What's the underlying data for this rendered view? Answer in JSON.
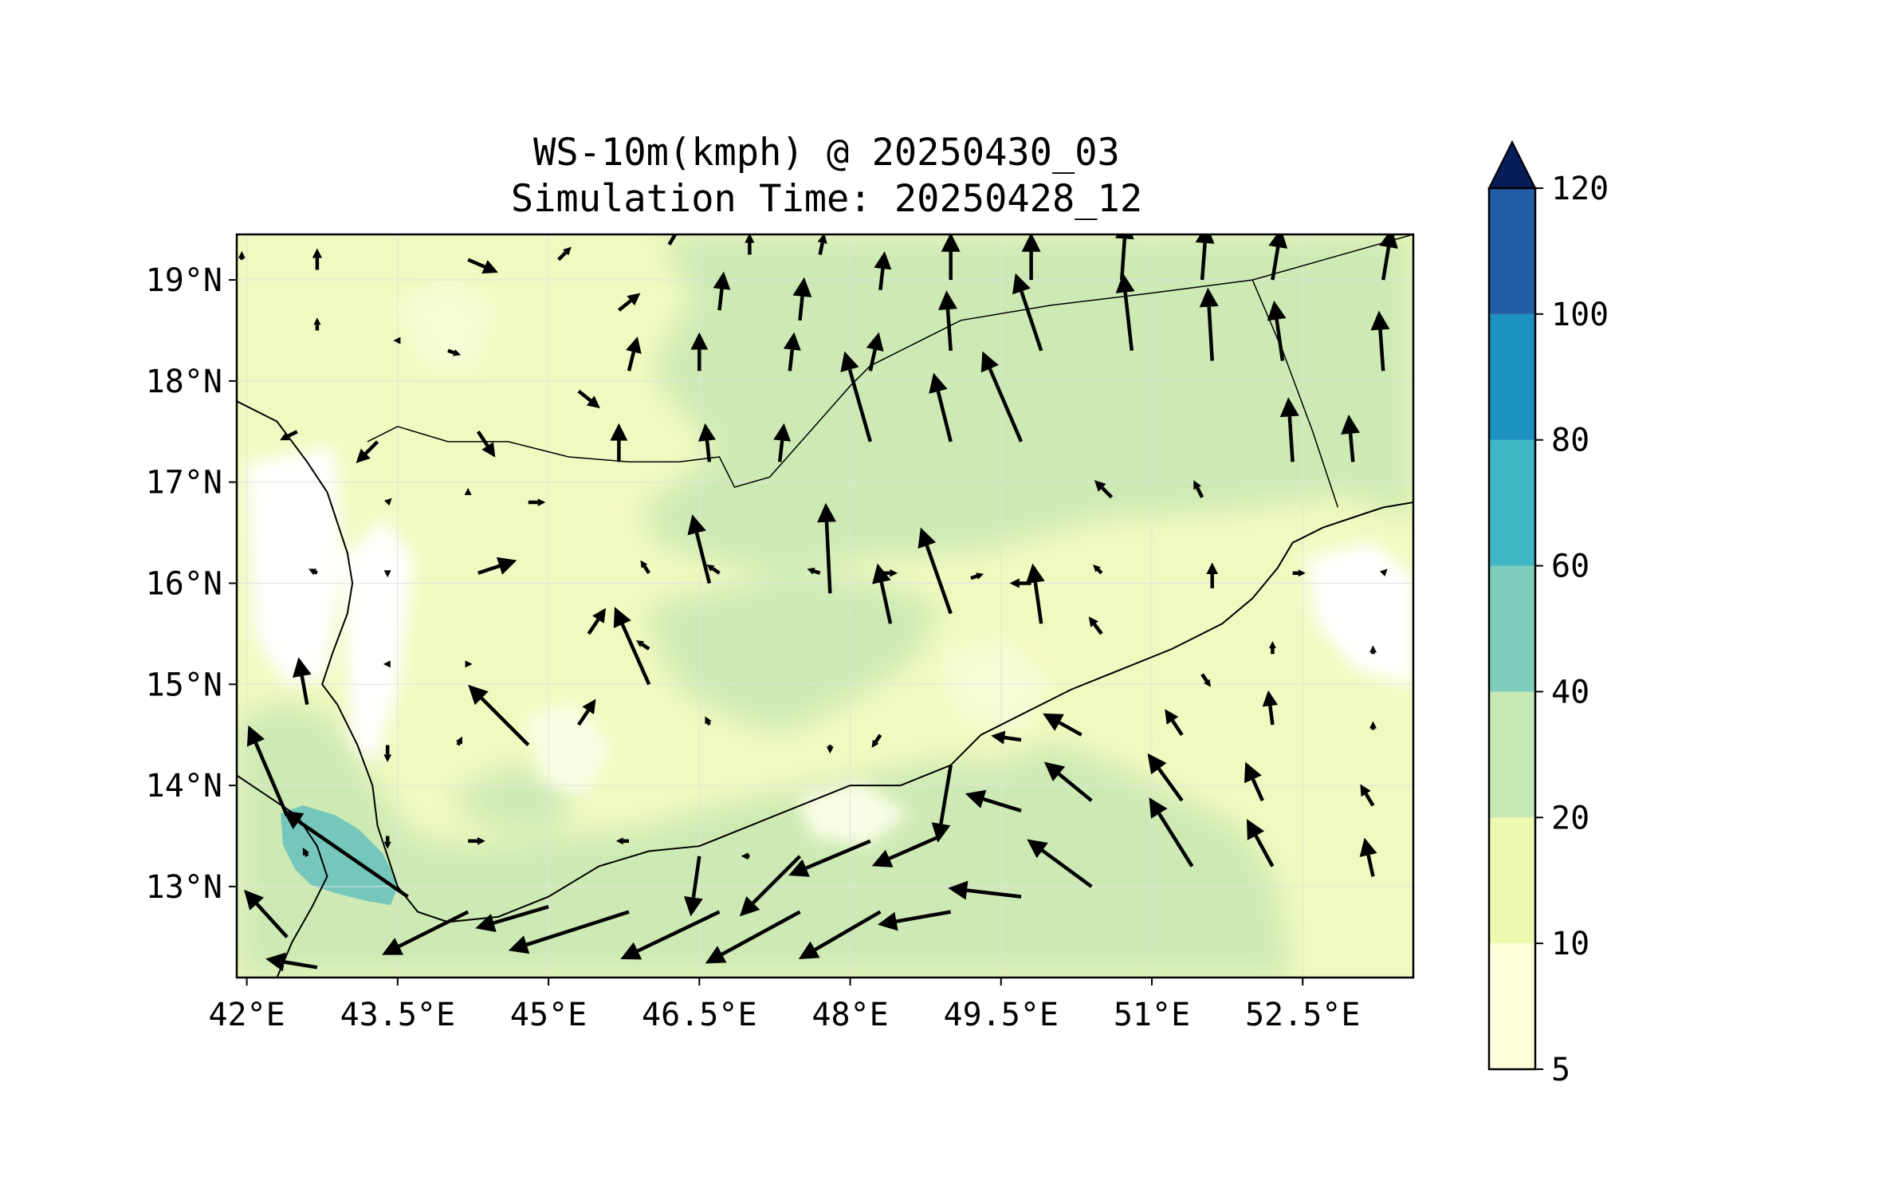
{
  "title": {
    "line1": "WS-10m(kmph) @ 20250430_03",
    "line2": "Simulation Time: 20250428_12"
  },
  "map": {
    "lon_range": [
      41.9,
      53.6
    ],
    "lat_range": [
      12.1,
      19.45
    ],
    "lon_ticks": [
      {
        "value": 42.0,
        "label": "42°E"
      },
      {
        "value": 43.5,
        "label": "43.5°E"
      },
      {
        "value": 45.0,
        "label": "45°E"
      },
      {
        "value": 46.5,
        "label": "46.5°E"
      },
      {
        "value": 48.0,
        "label": "48°E"
      },
      {
        "value": 49.5,
        "label": "49.5°E"
      },
      {
        "value": 51.0,
        "label": "51°E"
      },
      {
        "value": 52.5,
        "label": "52.5°E"
      }
    ],
    "lat_ticks": [
      {
        "value": 13,
        "label": "13°N"
      },
      {
        "value": 14,
        "label": "14°N"
      },
      {
        "value": 15,
        "label": "15°N"
      },
      {
        "value": 16,
        "label": "16°N"
      },
      {
        "value": 17,
        "label": "17°N"
      },
      {
        "value": 18,
        "label": "18°N"
      },
      {
        "value": 19,
        "label": "19°N"
      }
    ],
    "gridlines": true,
    "coastline": [
      [
        41.9,
        17.8
      ],
      [
        42.3,
        17.6
      ],
      [
        42.6,
        17.2
      ],
      [
        42.8,
        16.9
      ],
      [
        42.9,
        16.6
      ],
      [
        43.0,
        16.3
      ],
      [
        43.05,
        16.0
      ],
      [
        43.0,
        15.7
      ],
      [
        42.85,
        15.3
      ],
      [
        42.75,
        15.0
      ],
      [
        42.9,
        14.8
      ],
      [
        43.1,
        14.4
      ],
      [
        43.25,
        14.0
      ],
      [
        43.3,
        13.6
      ],
      [
        43.4,
        13.3
      ],
      [
        43.5,
        13.0
      ],
      [
        43.7,
        12.75
      ],
      [
        44.0,
        12.65
      ],
      [
        44.5,
        12.7
      ],
      [
        45.0,
        12.9
      ],
      [
        45.5,
        13.2
      ],
      [
        46.0,
        13.35
      ],
      [
        46.5,
        13.4
      ],
      [
        47.0,
        13.6
      ],
      [
        47.5,
        13.8
      ],
      [
        48.0,
        14.0
      ],
      [
        48.5,
        14.0
      ],
      [
        49.0,
        14.2
      ],
      [
        49.3,
        14.5
      ],
      [
        49.7,
        14.7
      ],
      [
        50.2,
        14.95
      ],
      [
        50.7,
        15.15
      ],
      [
        51.2,
        15.35
      ],
      [
        51.7,
        15.6
      ],
      [
        52.0,
        15.85
      ],
      [
        52.25,
        16.15
      ],
      [
        52.4,
        16.4
      ],
      [
        52.7,
        16.55
      ],
      [
        53.0,
        16.65
      ],
      [
        53.3,
        16.75
      ],
      [
        53.6,
        16.8
      ]
    ],
    "african_coast": [
      [
        41.9,
        14.1
      ],
      [
        42.2,
        13.9
      ],
      [
        42.5,
        13.7
      ],
      [
        42.7,
        13.4
      ],
      [
        42.8,
        13.1
      ],
      [
        42.65,
        12.8
      ],
      [
        42.45,
        12.45
      ],
      [
        42.3,
        12.1
      ]
    ],
    "saudi_border": [
      [
        43.2,
        17.4
      ],
      [
        43.5,
        17.55
      ],
      [
        44.0,
        17.4
      ],
      [
        44.6,
        17.4
      ],
      [
        45.2,
        17.25
      ],
      [
        45.8,
        17.2
      ],
      [
        46.3,
        17.2
      ],
      [
        46.7,
        17.25
      ],
      [
        46.85,
        16.95
      ],
      [
        47.2,
        17.05
      ],
      [
        47.6,
        17.5
      ],
      [
        48.0,
        17.95
      ],
      [
        48.2,
        18.15
      ],
      [
        48.8,
        18.45
      ],
      [
        49.1,
        18.6
      ],
      [
        50.0,
        18.75
      ],
      [
        51.0,
        18.87
      ],
      [
        52.0,
        19.0
      ],
      [
        53.6,
        19.45
      ]
    ],
    "oman_border": [
      [
        52.0,
        19.0
      ],
      [
        52.3,
        18.3
      ],
      [
        52.6,
        17.5
      ],
      [
        52.85,
        16.75
      ]
    ],
    "wind_vectors": [
      {
        "lon": 44.8,
        "lat": 14.4,
        "u": -14,
        "v": 14,
        "speed": 22
      },
      {
        "lon": 42.4,
        "lat": 13.7,
        "u": -9,
        "v": 21,
        "speed": 23
      },
      {
        "lon": 43.6,
        "lat": 12.9,
        "u": -29,
        "v": 20,
        "speed": 35
      },
      {
        "lon": 44.2,
        "lat": 12.75,
        "u": -20,
        "v": -10,
        "speed": 22
      },
      {
        "lon": 45.0,
        "lat": 12.8,
        "u": -17,
        "v": -5,
        "speed": 18
      },
      {
        "lon": 45.8,
        "lat": 12.75,
        "u": -28,
        "v": -9,
        "speed": 29
      },
      {
        "lon": 46.7,
        "lat": 12.75,
        "u": -23,
        "v": -11,
        "speed": 25
      },
      {
        "lon": 47.5,
        "lat": 12.75,
        "u": -22,
        "v": -12,
        "speed": 25
      },
      {
        "lon": 48.3,
        "lat": 12.75,
        "u": -19,
        "v": -11,
        "speed": 22
      },
      {
        "lon": 49.0,
        "lat": 12.75,
        "u": -17,
        "v": -3,
        "speed": 17
      },
      {
        "lon": 49.7,
        "lat": 12.9,
        "u": -17,
        "v": 2,
        "speed": 17
      },
      {
        "lon": 50.4,
        "lat": 13.0,
        "u": -15,
        "v": 11,
        "speed": 19
      },
      {
        "lon": 51.4,
        "lat": 13.2,
        "u": -10,
        "v": 16,
        "speed": 19
      },
      {
        "lon": 52.2,
        "lat": 13.2,
        "u": -6,
        "v": 11,
        "speed": 13
      },
      {
        "lon": 53.2,
        "lat": 13.1,
        "u": -2,
        "v": 9,
        "speed": 9
      },
      {
        "lon": 47.5,
        "lat": 13.3,
        "u": -14,
        "v": -14,
        "speed": 20
      },
      {
        "lon": 48.2,
        "lat": 13.45,
        "u": -19,
        "v": -8,
        "speed": 21
      },
      {
        "lon": 48.9,
        "lat": 13.5,
        "u": -16,
        "v": -7,
        "speed": 17
      },
      {
        "lon": 49.7,
        "lat": 13.75,
        "u": -13,
        "v": 4,
        "speed": 14
      },
      {
        "lon": 50.4,
        "lat": 13.85,
        "u": -11,
        "v": 9,
        "speed": 14
      },
      {
        "lon": 51.3,
        "lat": 13.85,
        "u": -8,
        "v": 11,
        "speed": 14
      },
      {
        "lon": 52.1,
        "lat": 13.85,
        "u": -4,
        "v": 9,
        "speed": 10
      },
      {
        "lon": 53.2,
        "lat": 13.8,
        "u": -3,
        "v": 5,
        "speed": 6
      },
      {
        "lon": 50.3,
        "lat": 14.5,
        "u": -9,
        "v": 5,
        "speed": 10
      },
      {
        "lon": 51.3,
        "lat": 14.5,
        "u": -4,
        "v": 6,
        "speed": 7
      },
      {
        "lon": 52.2,
        "lat": 14.6,
        "u": -1,
        "v": 8,
        "speed": 8
      },
      {
        "lon": 49.7,
        "lat": 14.45,
        "u": -7,
        "v": 1,
        "speed": 7
      },
      {
        "lon": 49.0,
        "lat": 14.2,
        "u": -3,
        "v": -18,
        "speed": 18
      },
      {
        "lon": 46.5,
        "lat": 13.3,
        "u": -2,
        "v": -14,
        "speed": 14
      },
      {
        "lon": 46.0,
        "lat": 15.0,
        "u": -8,
        "v": 18,
        "speed": 20
      },
      {
        "lon": 46.6,
        "lat": 16.0,
        "u": -4,
        "v": 16,
        "speed": 16
      },
      {
        "lon": 47.8,
        "lat": 15.9,
        "u": -1,
        "v": 21,
        "speed": 21
      },
      {
        "lon": 48.4,
        "lat": 15.6,
        "u": -3,
        "v": 14,
        "speed": 14
      },
      {
        "lon": 49.0,
        "lat": 15.7,
        "u": -7,
        "v": 20,
        "speed": 21
      },
      {
        "lon": 49.9,
        "lat": 15.6,
        "u": -2,
        "v": 14,
        "speed": 14
      },
      {
        "lon": 48.2,
        "lat": 17.4,
        "u": -6,
        "v": 21,
        "speed": 22
      },
      {
        "lon": 49.0,
        "lat": 17.4,
        "u": -4,
        "v": 16,
        "speed": 16
      },
      {
        "lon": 49.7,
        "lat": 17.4,
        "u": -9,
        "v": 21,
        "speed": 23
      },
      {
        "lon": 49.9,
        "lat": 18.3,
        "u": -6,
        "v": 18,
        "speed": 19
      },
      {
        "lon": 50.8,
        "lat": 18.3,
        "u": -2,
        "v": 18,
        "speed": 18
      },
      {
        "lon": 51.6,
        "lat": 18.2,
        "u": -1,
        "v": 17,
        "speed": 17
      },
      {
        "lon": 52.3,
        "lat": 18.2,
        "u": -2,
        "v": 14,
        "speed": 14
      },
      {
        "lon": 52.4,
        "lat": 17.2,
        "u": -1,
        "v": 15,
        "speed": 15
      },
      {
        "lon": 53.3,
        "lat": 18.1,
        "u": -1,
        "v": 14,
        "speed": 14
      },
      {
        "lon": 53.0,
        "lat": 17.2,
        "u": -1,
        "v": 11,
        "speed": 11
      },
      {
        "lon": 49.0,
        "lat": 18.3,
        "u": -1,
        "v": 14,
        "speed": 14
      },
      {
        "lon": 49.0,
        "lat": 19.0,
        "u": 0,
        "v": 11,
        "speed": 11
      },
      {
        "lon": 49.8,
        "lat": 19.0,
        "u": 0,
        "v": 11,
        "speed": 11
      },
      {
        "lon": 50.7,
        "lat": 19.0,
        "u": 1,
        "v": 14,
        "speed": 14
      },
      {
        "lon": 51.5,
        "lat": 19.0,
        "u": 1,
        "v": 13,
        "speed": 13
      },
      {
        "lon": 52.2,
        "lat": 19.0,
        "u": 2,
        "v": 12,
        "speed": 12
      },
      {
        "lon": 53.3,
        "lat": 19.0,
        "u": 2,
        "v": 12,
        "speed": 12
      },
      {
        "lon": 48.3,
        "lat": 18.9,
        "u": 1,
        "v": 9,
        "speed": 9
      },
      {
        "lon": 47.5,
        "lat": 18.6,
        "u": 1,
        "v": 10,
        "speed": 10
      },
      {
        "lon": 46.7,
        "lat": 18.7,
        "u": 1,
        "v": 9,
        "speed": 9
      },
      {
        "lon": 45.7,
        "lat": 18.7,
        "u": 5,
        "v": 4,
        "speed": 7
      },
      {
        "lon": 44.2,
        "lat": 19.2,
        "u": 7,
        "v": -3,
        "speed": 8
      },
      {
        "lon": 45.1,
        "lat": 19.2,
        "u": 3,
        "v": 3,
        "speed": 5
      },
      {
        "lon": 46.2,
        "lat": 19.35,
        "u": 3,
        "v": 5,
        "speed": 6
      },
      {
        "lon": 47.0,
        "lat": 19.25,
        "u": 0,
        "v": 5,
        "speed": 5
      },
      {
        "lon": 47.7,
        "lat": 19.25,
        "u": 1,
        "v": 5,
        "speed": 5
      },
      {
        "lon": 45.8,
        "lat": 18.1,
        "u": 2,
        "v": 8,
        "speed": 8
      },
      {
        "lon": 46.5,
        "lat": 18.1,
        "u": 0,
        "v": 9,
        "speed": 9
      },
      {
        "lon": 47.4,
        "lat": 18.1,
        "u": 1,
        "v": 9,
        "speed": 9
      },
      {
        "lon": 48.2,
        "lat": 18.1,
        "u": 2,
        "v": 9,
        "speed": 9
      },
      {
        "lon": 45.7,
        "lat": 17.2,
        "u": 0,
        "v": 9,
        "speed": 9
      },
      {
        "lon": 46.6,
        "lat": 17.2,
        "u": -1,
        "v": 9,
        "speed": 9
      },
      {
        "lon": 47.3,
        "lat": 17.2,
        "u": 1,
        "v": 9,
        "speed": 9
      },
      {
        "lon": 44.3,
        "lat": 16.1,
        "u": 9,
        "v": 3,
        "speed": 9
      },
      {
        "lon": 45.4,
        "lat": 15.5,
        "u": 4,
        "v": 6,
        "speed": 7
      },
      {
        "lon": 45.3,
        "lat": 14.6,
        "u": 4,
        "v": 6,
        "speed": 7
      },
      {
        "lon": 44.2,
        "lat": 13.45,
        "u": 4,
        "v": 0,
        "speed": 4
      },
      {
        "lon": 45.8,
        "lat": 13.45,
        "u": -3,
        "v": 0,
        "speed": 3
      },
      {
        "lon": 44.3,
        "lat": 17.5,
        "u": 4,
        "v": -6,
        "speed": 7
      },
      {
        "lon": 42.5,
        "lat": 17.5,
        "u": -4,
        "v": -2,
        "speed": 5
      },
      {
        "lon": 43.3,
        "lat": 17.4,
        "u": -5,
        "v": -5,
        "speed": 7
      },
      {
        "lon": 45.3,
        "lat": 17.9,
        "u": 5,
        "v": -4,
        "speed": 6
      },
      {
        "lon": 42.7,
        "lat": 12.2,
        "u": -12,
        "v": 2,
        "speed": 12
      },
      {
        "lon": 42.4,
        "lat": 12.5,
        "u": -10,
        "v": 11,
        "speed": 15
      },
      {
        "lon": 42.6,
        "lat": 14.8,
        "u": -2,
        "v": 11,
        "speed": 11
      },
      {
        "lon": 50.5,
        "lat": 16.1,
        "u": -2,
        "v": 2,
        "speed": 3
      },
      {
        "lon": 50.6,
        "lat": 16.85,
        "u": -4,
        "v": 4,
        "speed": 5
      },
      {
        "lon": 51.5,
        "lat": 16.85,
        "u": -2,
        "v": 4,
        "speed": 4
      },
      {
        "lon": 51.6,
        "lat": 15.95,
        "u": 0,
        "v": 6,
        "speed": 6
      },
      {
        "lon": 50.5,
        "lat": 15.5,
        "u": -3,
        "v": 4,
        "speed": 5
      },
      {
        "lon": 51.5,
        "lat": 15.1,
        "u": 2,
        "v": -3,
        "speed": 4
      },
      {
        "lon": 52.4,
        "lat": 16.1,
        "u": 3,
        "v": 0,
        "speed": 3
      },
      {
        "lon": 53.3,
        "lat": 16.1,
        "u": 1,
        "v": 1,
        "speed": 1
      },
      {
        "lon": 49.8,
        "lat": 16.0,
        "u": -5,
        "v": 0,
        "speed": 5
      },
      {
        "lon": 49.2,
        "lat": 16.05,
        "u": 3,
        "v": 1,
        "speed": 3
      },
      {
        "lon": 48.3,
        "lat": 16.1,
        "u": 4,
        "v": 0,
        "speed": 4
      },
      {
        "lon": 47.7,
        "lat": 16.1,
        "u": -3,
        "v": 1,
        "speed": 3
      },
      {
        "lon": 46.7,
        "lat": 16.1,
        "u": -3,
        "v": 2,
        "speed": 4
      },
      {
        "lon": 46.0,
        "lat": 16.1,
        "u": -2,
        "v": 3,
        "speed": 4
      },
      {
        "lon": 44.8,
        "lat": 16.8,
        "u": 4,
        "v": 0,
        "speed": 4
      },
      {
        "lon": 44.2,
        "lat": 16.9,
        "u": 0,
        "v": 1,
        "speed": 1
      },
      {
        "lon": 43.4,
        "lat": 16.8,
        "u": 1,
        "v": 1,
        "speed": 1
      },
      {
        "lon": 42.7,
        "lat": 16.1,
        "u": -2,
        "v": 1,
        "speed": 2
      },
      {
        "lon": 43.4,
        "lat": 16.1,
        "u": 0,
        "v": -1,
        "speed": 1
      },
      {
        "lon": 46.0,
        "lat": 15.35,
        "u": -3,
        "v": 2,
        "speed": 4
      },
      {
        "lon": 43.4,
        "lat": 15.2,
        "u": -1,
        "v": 0,
        "speed": 1
      },
      {
        "lon": 44.2,
        "lat": 15.2,
        "u": 1,
        "v": 0,
        "speed": 1
      },
      {
        "lon": 43.4,
        "lat": 14.4,
        "u": 0,
        "v": -4,
        "speed": 4
      },
      {
        "lon": 44.1,
        "lat": 14.4,
        "u": 1,
        "v": 2,
        "speed": 2
      },
      {
        "lon": 43.4,
        "lat": 13.5,
        "u": 0,
        "v": -3,
        "speed": 3
      },
      {
        "lon": 42.6,
        "lat": 13.3,
        "u": -1,
        "v": 2,
        "speed": 2
      },
      {
        "lon": 47.0,
        "lat": 13.3,
        "u": -2,
        "v": 0,
        "speed": 2
      },
      {
        "lon": 47.8,
        "lat": 14.4,
        "u": 0,
        "v": -2,
        "speed": 2
      },
      {
        "lon": 48.3,
        "lat": 14.5,
        "u": -2,
        "v": -3,
        "speed": 4
      },
      {
        "lon": 46.6,
        "lat": 14.6,
        "u": -1,
        "v": 2,
        "speed": 2
      },
      {
        "lon": 52.2,
        "lat": 15.3,
        "u": 0,
        "v": 3,
        "speed": 3
      },
      {
        "lon": 53.2,
        "lat": 15.3,
        "u": 0,
        "v": 2,
        "speed": 2
      },
      {
        "lon": 53.2,
        "lat": 14.55,
        "u": 0,
        "v": 2,
        "speed": 2
      },
      {
        "lon": 51.3,
        "lat": 13.1,
        "u": 0,
        "v": 0,
        "speed": 1
      },
      {
        "lon": 41.95,
        "lat": 19.2,
        "u": 0,
        "v": 2,
        "speed": 2
      },
      {
        "lon": 42.7,
        "lat": 19.1,
        "u": 0,
        "v": 5,
        "speed": 5
      },
      {
        "lon": 42.7,
        "lat": 18.5,
        "u": 0,
        "v": 3,
        "speed": 3
      },
      {
        "lon": 43.5,
        "lat": 18.4,
        "u": -1,
        "v": 0,
        "speed": 1
      },
      {
        "lon": 44.0,
        "lat": 18.3,
        "u": 3,
        "v": -1,
        "speed": 3
      }
    ]
  },
  "colorbar": {
    "levels": [
      5,
      10,
      20,
      40,
      60,
      80,
      100,
      120
    ],
    "colors": [
      "#ffffd9",
      "#edf8b1",
      "#c7e9b4",
      "#7fcdbb",
      "#41b6c4",
      "#1d91c0",
      "#225ea8",
      "#253494"
    ],
    "extend_color": "#081d58",
    "tick_labels": [
      "5",
      "10",
      "20",
      "40",
      "60",
      "80",
      "100",
      "120"
    ]
  }
}
